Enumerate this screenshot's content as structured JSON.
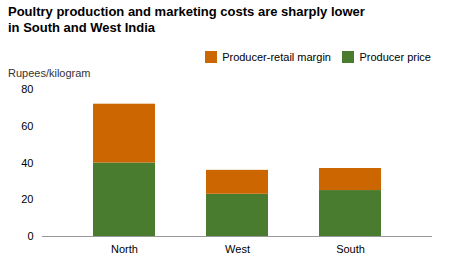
{
  "chart_data": {
    "type": "bar",
    "stacked": true,
    "title": "Poultry production and marketing costs are sharply lower\nin South and West India",
    "ylabel": "Rupees/kilogram",
    "categories": [
      "North",
      "West",
      "South"
    ],
    "series": [
      {
        "name": "Producer price",
        "color": "#4a7c2f",
        "values": [
          40,
          23,
          25
        ]
      },
      {
        "name": "Producer-retail margin",
        "color": "#cc6600",
        "values": [
          32,
          13,
          12
        ]
      }
    ],
    "ylim": [
      0,
      80
    ],
    "yticks": [
      0,
      20,
      40,
      60,
      80
    ],
    "grid": false,
    "legend": "upper right"
  }
}
